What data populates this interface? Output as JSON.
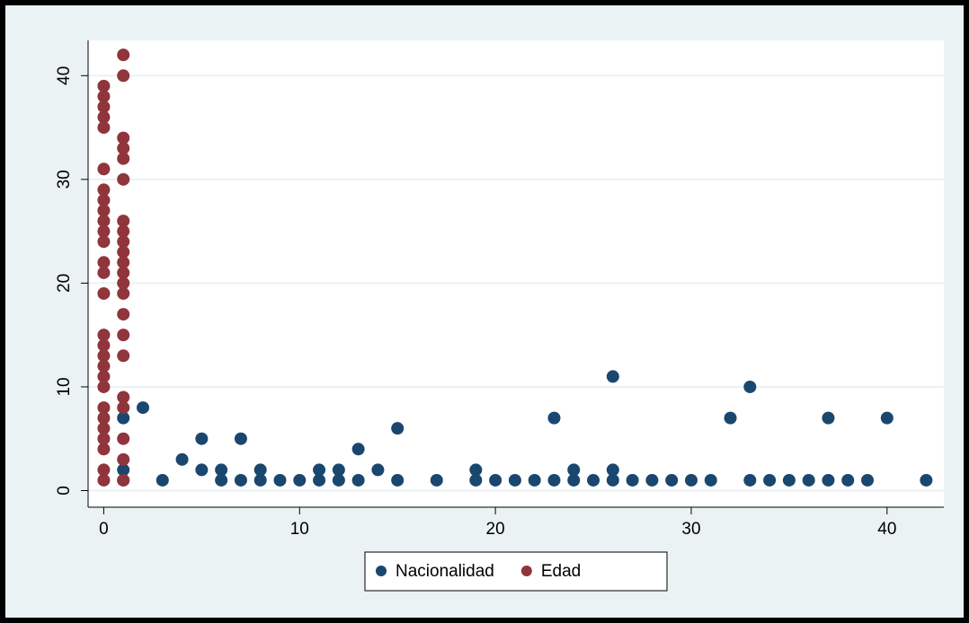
{
  "chart_data": {
    "type": "scatter",
    "xlim": [
      -0.8,
      42.9
    ],
    "ylim": [
      -1.6,
      43.4
    ],
    "xticks": [
      0,
      10,
      20,
      30,
      40
    ],
    "yticks": [
      0,
      10,
      20,
      30,
      40
    ],
    "grid": true,
    "legend": "bottom",
    "series": [
      {
        "name": "Nacionalidad",
        "color": "#1a476f",
        "x": [
          1,
          1,
          1,
          2,
          3,
          4,
          5,
          5,
          6,
          6,
          7,
          7,
          8,
          8,
          9,
          10,
          11,
          11,
          12,
          12,
          13,
          13,
          14,
          15,
          15,
          17,
          19,
          19,
          20,
          21,
          22,
          23,
          23,
          24,
          24,
          25,
          26,
          26,
          26,
          27,
          28,
          29,
          30,
          31,
          32,
          33,
          33,
          34,
          35,
          36,
          37,
          37,
          38,
          39,
          40,
          42
        ],
        "values": [
          7,
          2,
          1,
          8,
          1,
          3,
          5,
          2,
          2,
          1,
          5,
          1,
          2,
          1,
          1,
          1,
          2,
          1,
          2,
          1,
          4,
          1,
          2,
          6,
          1,
          1,
          2,
          1,
          1,
          1,
          1,
          7,
          1,
          2,
          1,
          1,
          11,
          2,
          1,
          1,
          1,
          1,
          1,
          1,
          7,
          10,
          1,
          1,
          1,
          1,
          7,
          1,
          1,
          1,
          7,
          1
        ]
      },
      {
        "name": "Edad",
        "color": "#90353b",
        "x": [
          0,
          0,
          0,
          0,
          0,
          0,
          0,
          0,
          0,
          0,
          0,
          0,
          0,
          0,
          0,
          0,
          0,
          0,
          0,
          0,
          0,
          0,
          0,
          0,
          0,
          0,
          0,
          0,
          1,
          1,
          1,
          1,
          1,
          1,
          1,
          1,
          1,
          1,
          1,
          1,
          1,
          1,
          1,
          1,
          1,
          1,
          1,
          1,
          1,
          1
        ],
        "values": [
          39,
          38,
          37,
          36,
          35,
          31,
          29,
          28,
          27,
          26,
          25,
          24,
          22,
          21,
          19,
          15,
          14,
          13,
          12,
          11,
          10,
          8,
          7,
          6,
          5,
          4,
          2,
          1,
          42,
          40,
          34,
          33,
          32,
          30,
          26,
          25,
          24,
          23,
          22,
          21,
          20,
          19,
          17,
          15,
          13,
          9,
          8,
          5,
          3,
          1
        ]
      }
    ]
  }
}
